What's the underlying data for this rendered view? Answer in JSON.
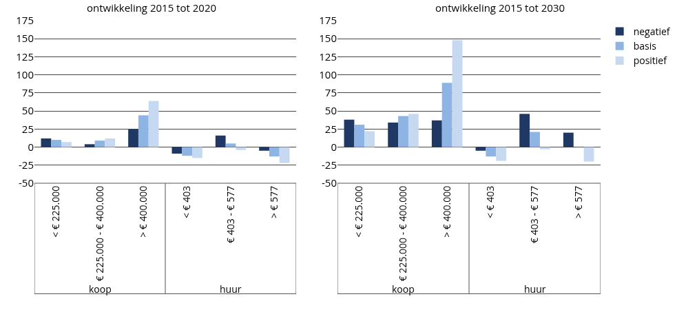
{
  "chart_data": [
    {
      "type": "bar",
      "title": "ontwikkeling 2015 tot 2020",
      "categories": [
        "< € 225.000",
        "€ 225.000 - € 400.000",
        "> € 400.000",
        "< € 403",
        "€ 403 - € 577",
        "> € 577"
      ],
      "series": [
        {
          "color": "#1f3864",
          "values": [
            12,
            4,
            25,
            -9,
            16,
            -5
          ]
        },
        {
          "color": "#8db4e2",
          "values": [
            10,
            9,
            44,
            -12,
            5,
            -13
          ]
        },
        {
          "color": "#c6d9f1",
          "values": [
            7,
            12,
            64,
            -15,
            -4,
            -22
          ]
        }
      ],
      "annotations": [
        "koop",
        "huur"
      ],
      "ylim": [
        -50,
        175
      ],
      "yticks": [
        -50,
        -25,
        0,
        25,
        50,
        75,
        100,
        125,
        150,
        175
      ],
      "grid": "y",
      "legend": false
    },
    {
      "type": "bar",
      "title": "ontwikkeling 2015 tot 2030",
      "categories": [
        "< € 225.000",
        "€ 225.000 - € 400.000",
        "> € 400.000",
        "< € 403",
        "€ 403 - € 577",
        "> € 577"
      ],
      "series": [
        {
          "name": "negatief",
          "color": "#1f3864",
          "values": [
            38,
            34,
            37,
            -5,
            46,
            20
          ]
        },
        {
          "name": "basis",
          "color": "#8db4e2",
          "values": [
            31,
            43,
            89,
            -13,
            21,
            0
          ]
        },
        {
          "name": "positief",
          "color": "#c6d9f1",
          "values": [
            22,
            46,
            148,
            -19,
            -3,
            -20
          ]
        }
      ],
      "annotations": [
        "koop",
        "huur"
      ],
      "ylim": [
        -50,
        175
      ],
      "yticks": [
        -50,
        -25,
        0,
        25,
        50,
        75,
        100,
        125,
        150,
        175
      ],
      "grid": "y",
      "legend": "right"
    }
  ]
}
